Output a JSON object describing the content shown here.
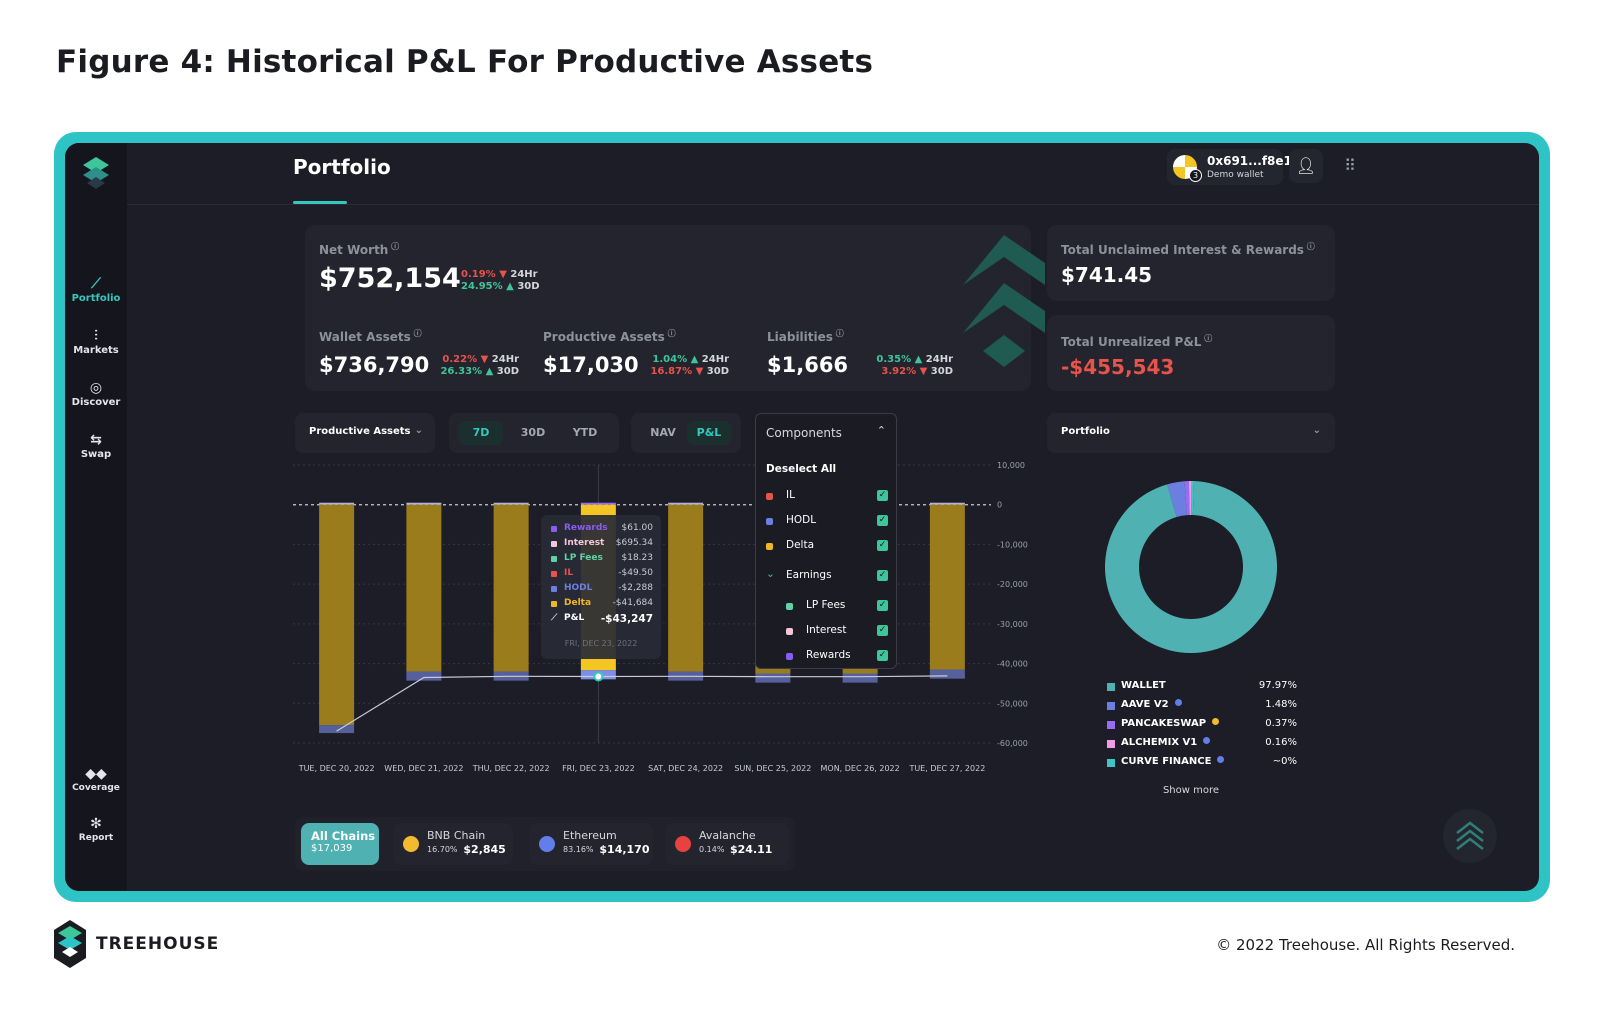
{
  "figure_title": "Figure 4: Historical P&L For Productive Assets",
  "sidebar": {
    "items": [
      {
        "label": "Portfolio",
        "icon": "chart-line-icon",
        "active": true
      },
      {
        "label": "Markets",
        "icon": "candles-icon",
        "active": false
      },
      {
        "label": "Discover",
        "icon": "compass-icon",
        "active": false
      },
      {
        "label": "Swap",
        "icon": "swap-arrows-icon",
        "active": false
      }
    ],
    "bottom": [
      {
        "label": "Coverage",
        "icon": "shield-icon"
      },
      {
        "label": "Report",
        "icon": "bug-icon"
      }
    ]
  },
  "header": {
    "title": "Portfolio",
    "wallet_address": "0x691...f8e1",
    "wallet_sub": "Demo wallet",
    "wallet_badge": "3"
  },
  "net_worth": {
    "label": "Net Worth",
    "value": "$752,154",
    "change_24h": "0.19%",
    "change_30d": "24.95%",
    "period_24h": "24Hr",
    "period_30d": "30D"
  },
  "sub_metrics": [
    {
      "label": "Wallet Assets",
      "value": "$736,790",
      "change_24h": "0.22%",
      "dir_24h": "down",
      "change_30d": "26.33%",
      "dir_30d": "up"
    },
    {
      "label": "Productive Assets",
      "value": "$17,030",
      "change_24h": "1.04%",
      "dir_24h": "up",
      "change_30d": "16.87%",
      "dir_30d": "down"
    },
    {
      "label": "Liabilities",
      "value": "$1,666",
      "change_24h": "0.35%",
      "dir_24h": "up",
      "change_30d": "3.92%",
      "dir_30d": "down"
    }
  ],
  "unclaimed": {
    "label": "Total Unclaimed Interest & Rewards",
    "value": "$741.45"
  },
  "unrealized": {
    "label": "Total Unrealized P&L",
    "value": "-$455,543"
  },
  "controls": {
    "asset_select": "Productive Assets",
    "ranges": [
      "7D",
      "30D",
      "YTD"
    ],
    "active_range": "7D",
    "modes": [
      "NAV",
      "P&L"
    ],
    "active_mode": "P&L",
    "components_label": "Components",
    "deselect_all": "Deselect All",
    "right_select": "Portfolio"
  },
  "components": [
    {
      "name": "IL",
      "color": "#e8534c",
      "indent": false
    },
    {
      "name": "HODL",
      "color": "#6b7fe0",
      "indent": false
    },
    {
      "name": "Delta",
      "color": "#f0b724",
      "indent": false
    },
    {
      "name": "Earnings",
      "color": "",
      "indent": false,
      "group": true
    },
    {
      "name": "LP Fees",
      "color": "#5fd3a6",
      "indent": true
    },
    {
      "name": "Interest",
      "color": "#f4c6d8",
      "indent": true
    },
    {
      "name": "Rewards",
      "color": "#8a5cf0",
      "indent": true
    }
  ],
  "tooltip": {
    "date": "FRI, DEC 23, 2022",
    "rows": [
      {
        "name": "Rewards",
        "value": "$61.00",
        "color": "#8a5cf0"
      },
      {
        "name": "Interest",
        "value": "$695.34",
        "color": "#f4c6d8"
      },
      {
        "name": "LP Fees",
        "value": "$18.23",
        "color": "#5fd3a6"
      },
      {
        "name": "IL",
        "value": "-$49.50",
        "color": "#e8534c"
      },
      {
        "name": "HODL",
        "value": "-$2,288",
        "color": "#6b7fe0"
      },
      {
        "name": "Delta",
        "value": "-$41,684",
        "color": "#f0b724"
      }
    ],
    "pnl_label": "P&L",
    "pnl_value": "-$43,247"
  },
  "chart_data": {
    "type": "bar",
    "categories": [
      "TUE, DEC 20, 2022",
      "WED, DEC 21, 2022",
      "THU, DEC 22, 2022",
      "FRI, DEC 23, 2022",
      "SAT, DEC 24, 2022",
      "SUN, DEC 25, 2022",
      "MON, DEC 26, 2022",
      "TUE, DEC 27, 2022"
    ],
    "series": [
      {
        "name": "Delta",
        "values": [
          -55500,
          -42000,
          -42000,
          -41684,
          -42000,
          -42500,
          -42500,
          -41500
        ],
        "color": "#9a7c1c"
      },
      {
        "name": "HODL",
        "values": [
          -2000,
          -2300,
          -2300,
          -2288,
          -2300,
          -2300,
          -2300,
          -2300
        ],
        "color": "#55609c"
      },
      {
        "name": "P&L",
        "values": [
          -57000,
          -43500,
          -43200,
          -43247,
          -43200,
          -43300,
          -43300,
          -43100
        ],
        "color": "#c9ccd4"
      }
    ],
    "ylim": [
      -60000,
      10000
    ],
    "yticks": [
      "10,000",
      "0",
      "-10,000",
      "-20,000",
      "-30,000",
      "-40,000",
      "-50,000",
      "-60,000"
    ],
    "ytick_values": [
      10000,
      0,
      -10000,
      -20000,
      -30000,
      -40000,
      -50000,
      -60000
    ],
    "highlight_index": 3
  },
  "allocation": {
    "items": [
      {
        "name": "WALLET",
        "pct": "97.97%",
        "color": "#4fb1b1",
        "chain_color": "",
        "value": 97.97
      },
      {
        "name": "AAVE V2",
        "pct": "1.48%",
        "color": "#6b7fe0",
        "chain_color": "#627eea",
        "value": 1.48
      },
      {
        "name": "PANCAKESWAP",
        "pct": "0.37%",
        "color": "#9a6cf2",
        "chain_color": "#f3ba2f",
        "value": 0.37
      },
      {
        "name": "ALCHEMIX V1",
        "pct": "0.16%",
        "color": "#f19be6",
        "chain_color": "#627eea",
        "value": 0.16
      },
      {
        "name": "CURVE FINANCE",
        "pct": "~0%",
        "color": "#3fc4c7",
        "chain_color": "#627eea",
        "value": 0.02
      }
    ],
    "show_more": "Show more"
  },
  "chains": [
    {
      "name": "All Chains",
      "value": "$17,039",
      "pct": "",
      "active": true,
      "color": ""
    },
    {
      "name": "BNB Chain",
      "value": "$2,845",
      "pct": "16.70%",
      "active": false,
      "color": "#f3ba2f"
    },
    {
      "name": "Ethereum",
      "value": "$14,170",
      "pct": "83.16%",
      "active": false,
      "color": "#627eea"
    },
    {
      "name": "Avalanche",
      "value": "$24.11",
      "pct": "0.14%",
      "active": false,
      "color": "#e84142"
    }
  ],
  "footer": {
    "brand": "TREEHOUSE",
    "copyright": "© 2022 Treehouse. All Rights Reserved."
  }
}
